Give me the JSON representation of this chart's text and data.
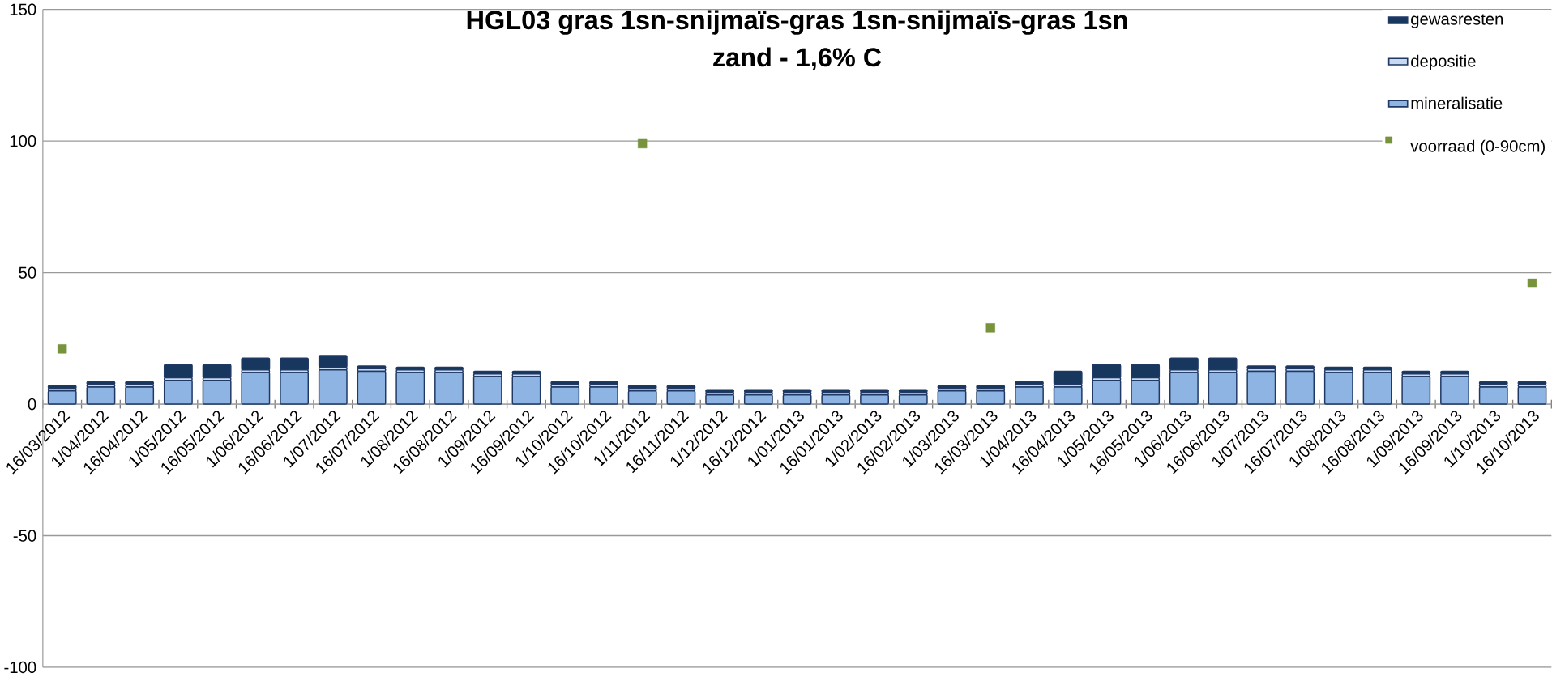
{
  "chart_data": {
    "type": "bar",
    "stacked": true,
    "title": "HGL03 gras 1sn-snijmaïs-gras 1sn-snijmaïs-gras 1sn",
    "subtitle": "zand - 1,6% C",
    "categories": [
      "16/03/2012",
      "1/04/2012",
      "16/04/2012",
      "1/05/2012",
      "16/05/2012",
      "1/06/2012",
      "16/06/2012",
      "1/07/2012",
      "16/07/2012",
      "1/08/2012",
      "16/08/2012",
      "1/09/2012",
      "16/09/2012",
      "1/10/2012",
      "16/10/2012",
      "1/11/2012",
      "16/11/2012",
      "1/12/2012",
      "16/12/2012",
      "1/01/2013",
      "16/01/2013",
      "1/02/2013",
      "16/02/2013",
      "1/03/2013",
      "16/03/2013",
      "1/04/2013",
      "16/04/2013",
      "1/05/2013",
      "16/05/2013",
      "1/06/2013",
      "16/06/2013",
      "1/07/2013",
      "16/07/2013",
      "1/08/2013",
      "16/08/2013",
      "1/09/2013",
      "16/09/2013",
      "1/10/2013",
      "16/10/2013"
    ],
    "series": [
      {
        "name": "mineralisatie",
        "color": "#8eb4e3",
        "values": [
          5,
          6.5,
          6.5,
          9,
          9,
          12,
          12,
          13,
          12.5,
          12,
          12,
          10.5,
          10.5,
          6.5,
          6.5,
          5,
          5,
          3.5,
          3.5,
          3.5,
          3.5,
          3.5,
          3.5,
          5,
          5,
          6.5,
          6.5,
          9,
          9,
          12,
          12,
          12.5,
          12.5,
          12,
          12,
          10.5,
          10.5,
          6.5,
          6.5
        ]
      },
      {
        "name": "depositie",
        "color": "#c6d9f1",
        "values": [
          1,
          1,
          1,
          1,
          1,
          1,
          1,
          1,
          1,
          1,
          1,
          1,
          1,
          1,
          1,
          1,
          1,
          1,
          1,
          1,
          1,
          1,
          1,
          1,
          1,
          1,
          1,
          1,
          1,
          1,
          1,
          1,
          1,
          1,
          1,
          1,
          1,
          1,
          1
        ]
      },
      {
        "name": "gewasresten",
        "color": "#17375e",
        "values": [
          1,
          1,
          1,
          5,
          5,
          4.5,
          4.5,
          4.5,
          1,
          1,
          1,
          1,
          1,
          1,
          1,
          1,
          1,
          1,
          1,
          1,
          1,
          1,
          1,
          1,
          1,
          1,
          5,
          5,
          5,
          4.5,
          4.5,
          1,
          1,
          1,
          1,
          1,
          1,
          1,
          1
        ]
      },
      {
        "name": "voorraad (0-90cm)",
        "type": "scatter",
        "color": "#77933c",
        "values": [
          21,
          null,
          null,
          null,
          null,
          null,
          null,
          null,
          null,
          null,
          null,
          null,
          null,
          null,
          null,
          99,
          null,
          null,
          null,
          null,
          null,
          null,
          null,
          null,
          29,
          null,
          null,
          null,
          null,
          null,
          null,
          null,
          null,
          null,
          null,
          null,
          null,
          null,
          46
        ]
      }
    ],
    "ylim": [
      -100,
      150
    ],
    "yticks": [
      -100,
      -50,
      0,
      50,
      100,
      150
    ],
    "grid": "y",
    "legend": "top right"
  }
}
